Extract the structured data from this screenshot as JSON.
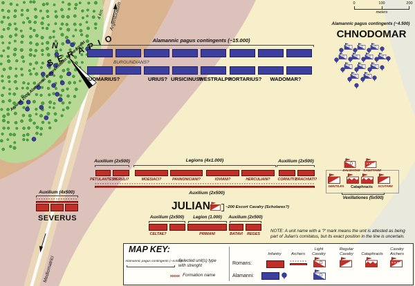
{
  "labels": {
    "serapio": "S E R A P I O",
    "north": "N",
    "road_distance": "4 km.",
    "road_to": "Argentoratum",
    "road_from": "Mediomatrici",
    "hidden_troops": "Around 2000 Alamannic troops hidden in the forest"
  },
  "scale_bar": {
    "ticks": [
      "0",
      "100",
      "200"
    ],
    "unit_label": "meters"
  },
  "alamanni_line": {
    "bracket_label": "Alamannic pagus contingents (~15.000)",
    "inner_label": "BURGUNDIANS?",
    "pagus_names": [
      "SUOMARIUS?",
      "URIUS?",
      "URSICINUS?",
      "WESTRALP?",
      "HORTARIUS?",
      "WADOMAR?"
    ]
  },
  "chnodomar_group": {
    "bracket_label": "Alamannic pagus contingents (~4.500)",
    "commander": "CHNODOMAR"
  },
  "severus_group": {
    "bracket_label": "Auxilium (4x500)",
    "commander": "SEVERUS"
  },
  "roman_line1": {
    "bracket_labels": [
      "Auxilium (2x500)",
      "Legions (4x1.000)",
      "Auxilium (2x500)"
    ],
    "units": [
      "PETULANTES?",
      "HERULI?",
      "MOESIACI?",
      "PANNONICIANI?",
      "IOVIANI?",
      "HERCULIANI?",
      "CORNUTI?",
      "BRACHIATI?"
    ],
    "archers_label": "Auxilium (2x500)"
  },
  "julian": {
    "commander": "JULIAN",
    "escort_label": "~200 Escort Cavalry (Scholares?)"
  },
  "roman_line2": {
    "bracket_labels": [
      "Auxilium (2x500)",
      "Legion (1.000)",
      "Auxilium (2x500)"
    ],
    "units": [
      "CELTAE?",
      "",
      "PRIMANI",
      "BATAVI",
      "REGES"
    ]
  },
  "roman_cavalry": {
    "top_units": [
      "DALMATAE",
      "SAGITTARII"
    ],
    "bottom_units": [
      "GENTILES",
      "Cataphracts",
      "SCUTARII"
    ],
    "bracket_label": "Vexillationes (5x500)"
  },
  "note": "NOTE: A unit name with a '?' mark means the unit is attested as being part of Julian's comitatus, but its exact position in the line is uncertain.",
  "map_key": {
    "title": "MAP KEY:",
    "sample_label": "Alamannic pagus contingents (~4.000)",
    "sample_desc": "Selected unit(s) type with strenght",
    "formation_sample": "xxxxx",
    "formation_desc": "Formation name",
    "row_labels": [
      "Romans:",
      "Alamanni:"
    ],
    "columns": [
      "Infantry",
      "Archers",
      "Light\nCavalry",
      "Regular\nCavalry",
      "Cataphracts",
      "Cavalry\nArchers"
    ]
  },
  "colors": {
    "roman_red": "#c13028",
    "roman_dark": "#5a0f0a",
    "alamanni_blue": "#3c3f9e",
    "alamanni_dark": "#1c1e5e",
    "forest_green": "#b7d995",
    "cream": "#f6efca",
    "tan_band": "#d9b28e",
    "pink_band": "#dcc2ba",
    "gray_band": "#e9e9de"
  }
}
